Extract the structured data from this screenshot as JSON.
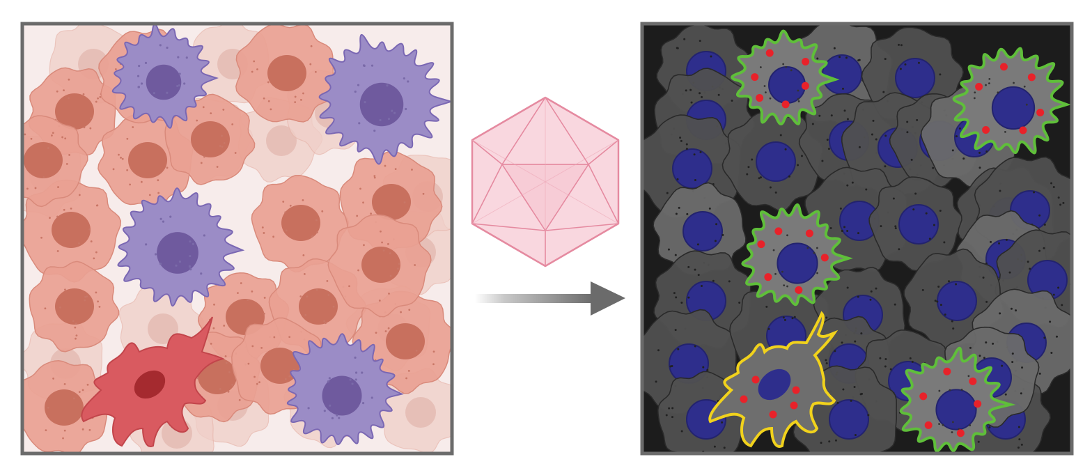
{
  "figure": {
    "left_panel": {
      "background": "#f7eceb",
      "border": "#6b6b6b",
      "tissue_cell_fill": "#e9a193",
      "tissue_cell_nucleus": "#c8705e",
      "faded_cell_fill": "#f0cfc8",
      "faded_cell_nucleus": "#e1b0a6",
      "immune_cell_fill": "#9b8cc6",
      "immune_cell_nucleus": "#6f5a9e",
      "immune_cell_edge": "#7a67b3",
      "dendritic_cell_fill": "#d95a60",
      "dendritic_cell_nucleus": "#a52a2f"
    },
    "center": {
      "icosahedron_fill": "#f7ccd6",
      "icosahedron_stroke": "#e58aa0",
      "arrow_color": "#6b6b6b",
      "icosahedron_icon": "icosahedron-virus-icon",
      "arrow_icon": "right-arrow-icon"
    },
    "right_panel": {
      "background": "#1c1c1c",
      "border": "#6b6b6b",
      "cell_fill": "#505050",
      "cell_fill_light": "#6a6a6a",
      "nucleus": "#2e2e8c",
      "outline_green": "#5fbf3a",
      "outline_yellow": "#f1d21c",
      "particle_red": "#e8222a"
    }
  }
}
